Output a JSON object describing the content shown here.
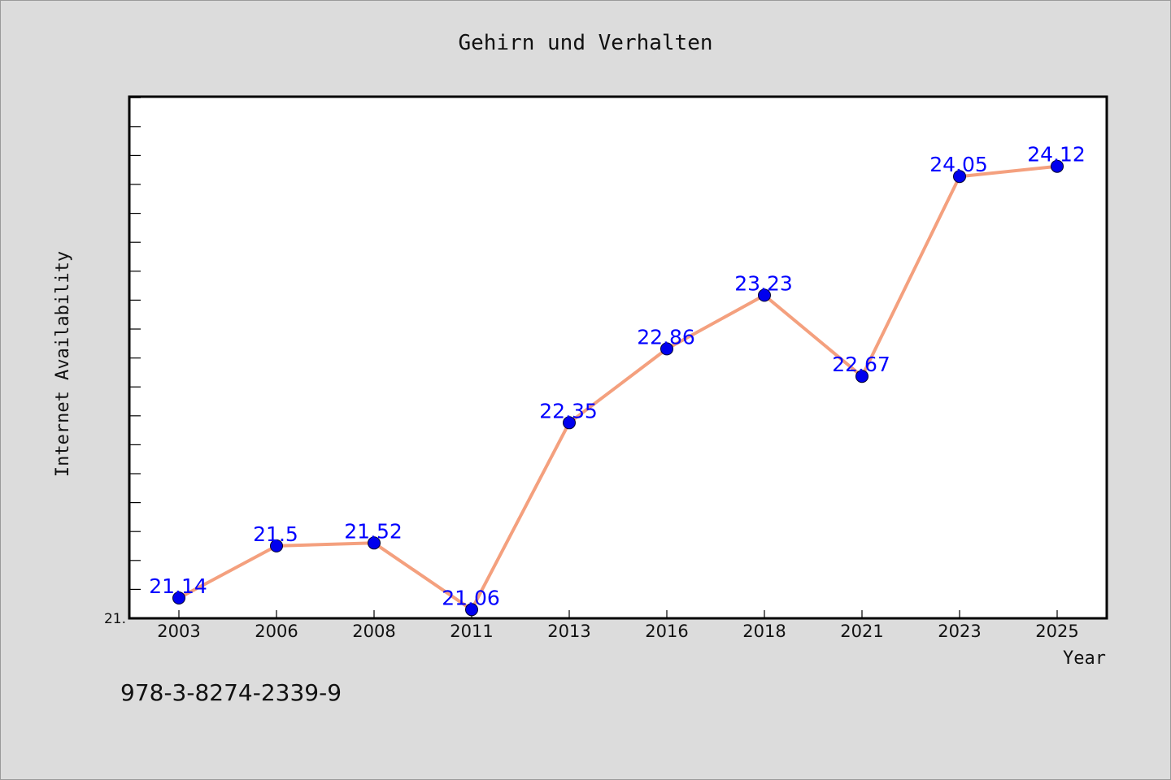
{
  "chart_data": {
    "type": "line",
    "title": "Gehirn und Verhalten",
    "xlabel": "Year",
    "ylabel": "Internet Availability",
    "categories": [
      "2003",
      "2006",
      "2008",
      "2011",
      "2013",
      "2016",
      "2018",
      "2021",
      "2023",
      "2025"
    ],
    "series": [
      {
        "values": [
          21.14,
          21.5,
          21.52,
          21.06,
          22.35,
          22.86,
          23.23,
          22.67,
          24.05,
          24.12
        ],
        "labels": [
          "21.14",
          "21.5",
          "21.52",
          "21.06",
          "22.35",
          "22.86",
          "23.23",
          "22.67",
          "24.05",
          "24.12"
        ]
      }
    ],
    "ylim": [
      21.0,
      24.6
    ],
    "y_tick_labels": [
      "21."
    ],
    "grid": false,
    "legend": "none",
    "colors": {
      "background": "#dcdcdc",
      "plot_background": "#ffffff",
      "line": "#f4a07e",
      "marker": "#0000ee",
      "data_label": "#0000ff"
    }
  },
  "footer": {
    "isbn": "978-3-8274-2339-9"
  }
}
